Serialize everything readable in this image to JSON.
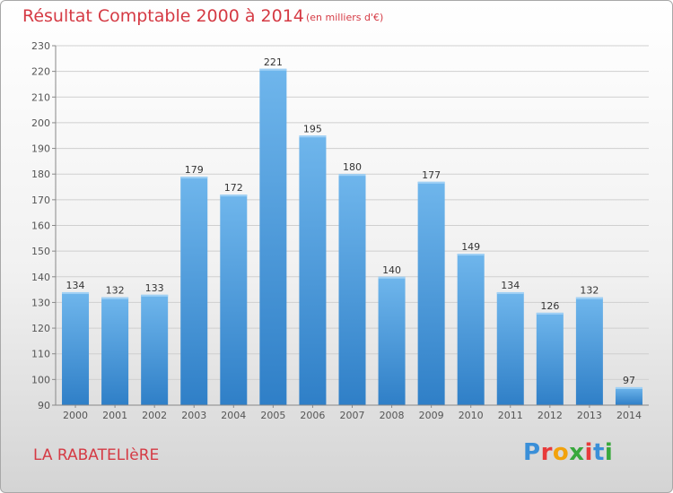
{
  "header": {
    "title": "Résultat Comptable 2000 à 2014",
    "subtitle": "(en milliers d'€)"
  },
  "footer": {
    "commune": "LA RABATELIèRE",
    "logo_text": "Proxiti",
    "logo_colors": [
      "#3a8fd8",
      "#e83a3a",
      "#f2a20c",
      "#38a83c",
      "#e83a3a",
      "#3a8fd8",
      "#38a83c"
    ]
  },
  "colors": {
    "bar_light": "#6fb6ec",
    "bar_dark": "#2f7fc7",
    "title": "#d53a44",
    "axis": "#555555",
    "grid": "#cfcfcf"
  },
  "chart_data": {
    "type": "bar",
    "categories": [
      "2000",
      "2001",
      "2002",
      "2003",
      "2004",
      "2005",
      "2006",
      "2007",
      "2008",
      "2009",
      "2010",
      "2011",
      "2012",
      "2013",
      "2014"
    ],
    "values": [
      134,
      132,
      133,
      179,
      172,
      221,
      195,
      180,
      140,
      177,
      149,
      134,
      126,
      132,
      97
    ],
    "title": "Résultat Comptable 2000 à 2014",
    "xlabel": "",
    "ylabel": "",
    "ylim": [
      90,
      230
    ],
    "yticks": [
      90,
      100,
      110,
      120,
      130,
      140,
      150,
      160,
      170,
      180,
      190,
      200,
      210,
      220,
      230
    ],
    "grid": true,
    "data_labels": true
  }
}
